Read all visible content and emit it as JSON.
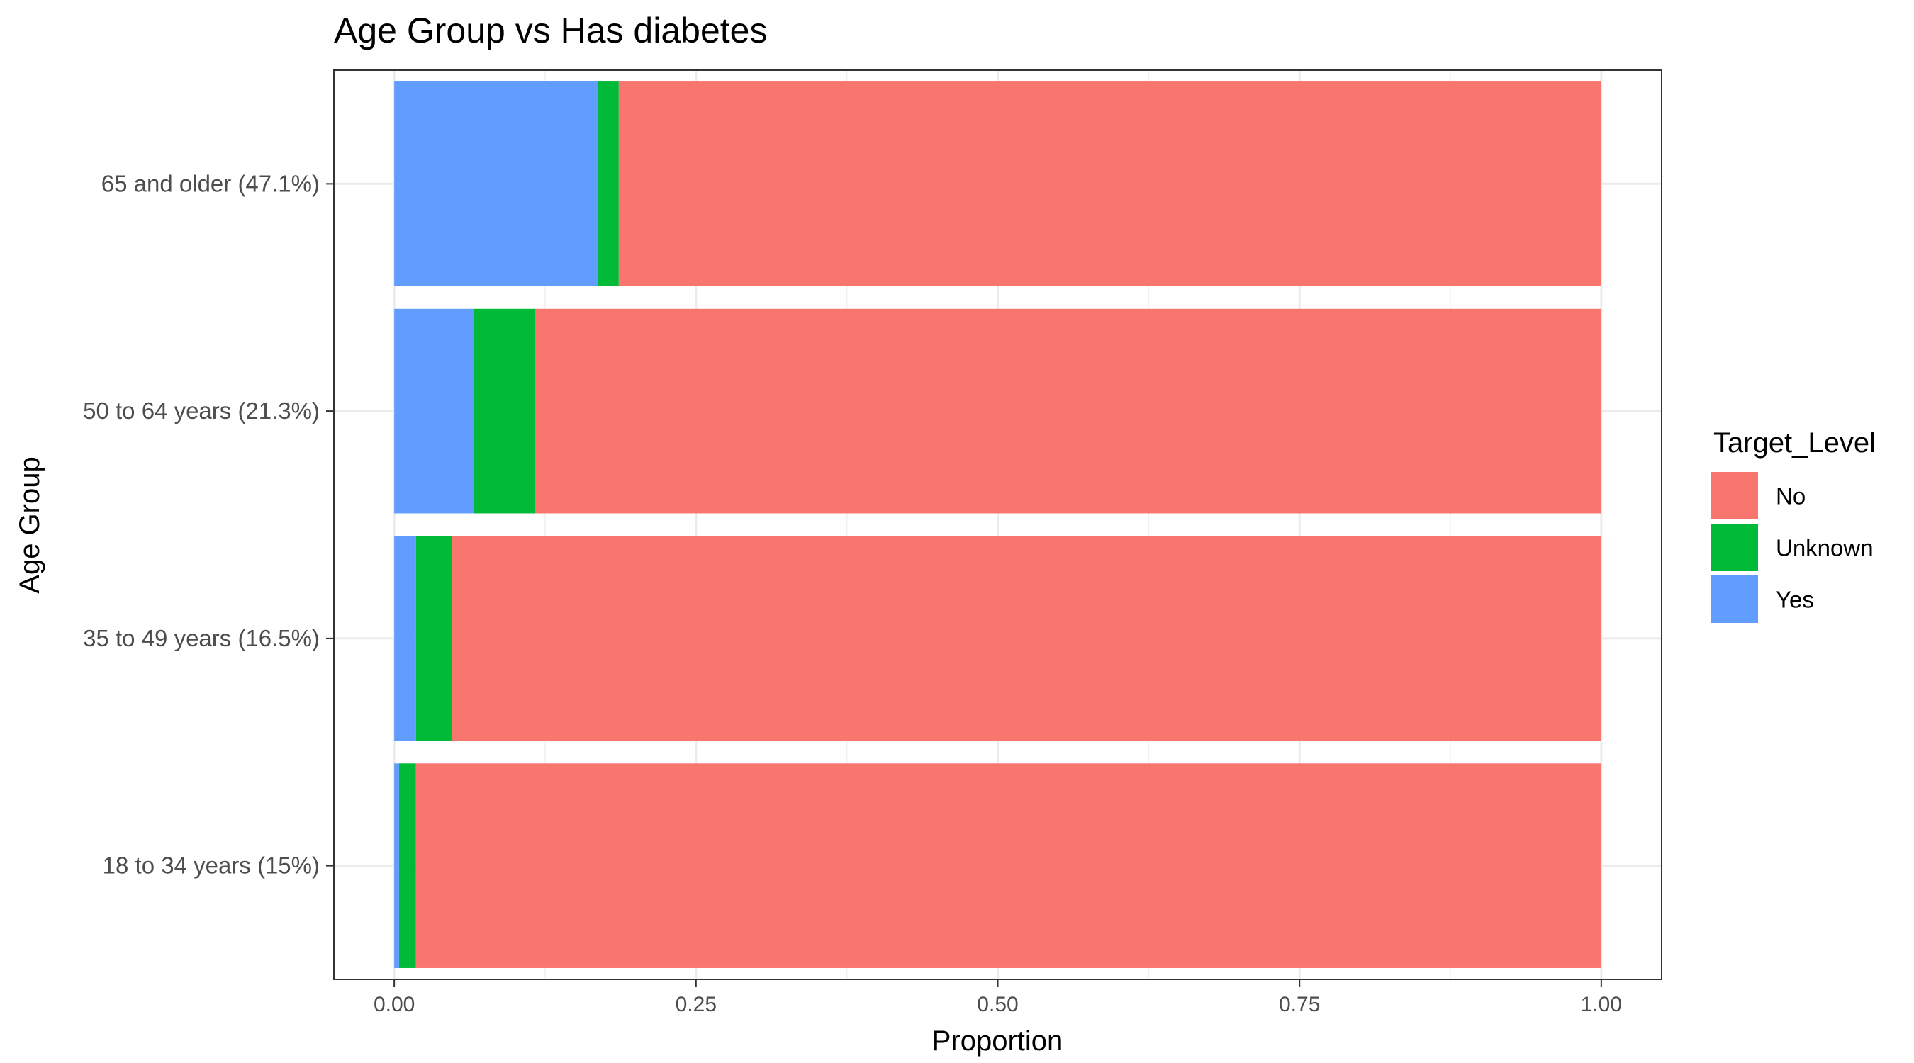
{
  "chart_data": {
    "type": "bar",
    "orientation": "horizontal",
    "stacked": true,
    "title": "Age Group vs Has diabetes",
    "xlabel": "Proportion",
    "ylabel": "Age Group",
    "xlim": [
      -0.05,
      1.05
    ],
    "x_ticks": [
      "0.00",
      "0.25",
      "0.50",
      "0.75",
      "1.00"
    ],
    "x_tick_values": [
      0,
      0.25,
      0.5,
      0.75,
      1.0
    ],
    "categories": [
      "65 and older (47.1%)",
      "50 to 64 years (21.3%)",
      "35 to 49 years (16.5%)",
      "18 to 34 years (15%)"
    ],
    "series": [
      {
        "name": "Yes",
        "color": "#619CFF",
        "values": [
          0.169,
          0.066,
          0.018,
          0.004
        ]
      },
      {
        "name": "Unknown",
        "color": "#00BA38",
        "values": [
          0.017,
          0.051,
          0.03,
          0.014
        ]
      },
      {
        "name": "No",
        "color": "#F8766D",
        "values": [
          0.814,
          0.883,
          0.952,
          0.982
        ]
      }
    ],
    "grid": true,
    "legend": {
      "title": "Target_Level",
      "placement": "right",
      "entries": [
        {
          "label": "No",
          "color": "#F8766D"
        },
        {
          "label": "Unknown",
          "color": "#00BA38"
        },
        {
          "label": "Yes",
          "color": "#619CFF"
        }
      ]
    }
  }
}
